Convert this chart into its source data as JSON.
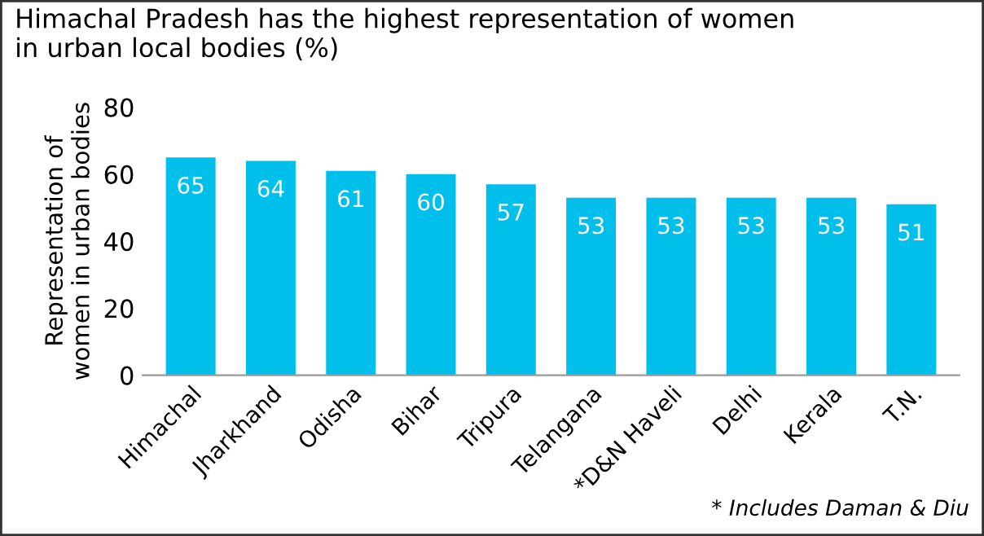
{
  "chart_data": {
    "type": "bar",
    "title": "Himachal Pradesh has the highest representation of women\nin urban local bodies (%)",
    "ylabel": "Representation of\nwomen in urban bodies",
    "categories": [
      "Himachal",
      "Jharkhand",
      "Odisha",
      "Bihar",
      "Tripura",
      "Telangana",
      "*D&N Haveli",
      "Delhi",
      "Kerala",
      "T.N."
    ],
    "values": [
      65,
      64,
      61,
      60,
      57,
      53,
      53,
      53,
      53,
      51
    ],
    "color": "#00bfea",
    "ylim": [
      0,
      80
    ],
    "yticks": [
      0,
      20,
      40,
      60,
      80
    ],
    "grid": false,
    "data_labels": true,
    "legend": false,
    "annotations": [
      "* Includes Daman & Diu"
    ]
  }
}
